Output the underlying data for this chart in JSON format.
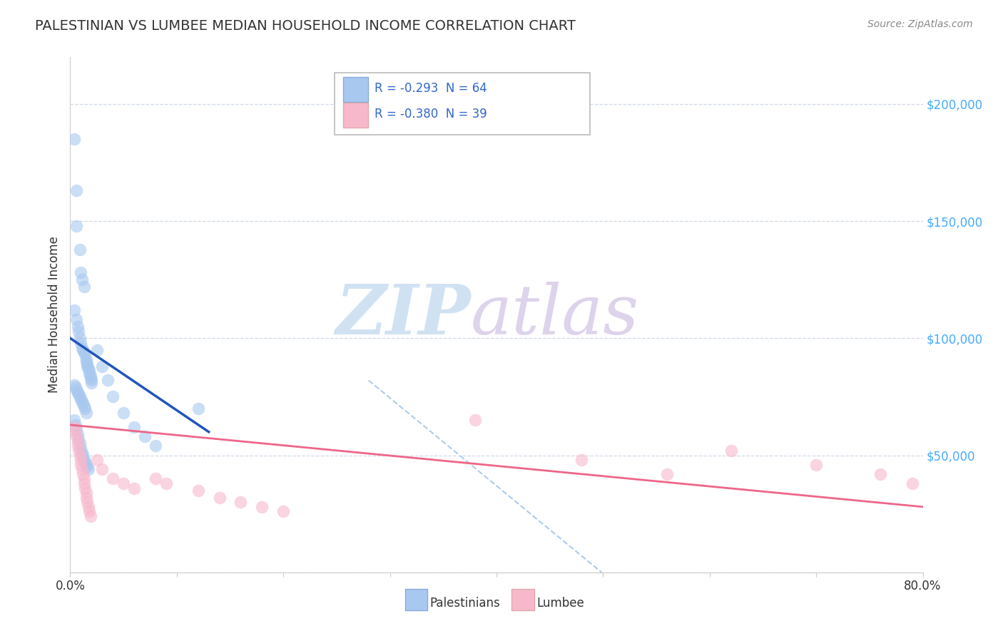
{
  "title": "PALESTINIAN VS LUMBEE MEDIAN HOUSEHOLD INCOME CORRELATION CHART",
  "source": "Source: ZipAtlas.com",
  "ylabel": "Median Household Income",
  "xlim": [
    0.0,
    0.8
  ],
  "ylim": [
    0,
    220000
  ],
  "background_color": "#ffffff",
  "grid_color": "#d0d8e8",
  "color1": "#a8c8f0",
  "color2": "#f8b8cc",
  "line_color1": "#2255bb",
  "line_color2": "#ee6688",
  "dash_color": "#aaccee",
  "title_color": "#333333",
  "source_color": "#888888",
  "tick_color": "#44aaff",
  "label1": "Palestinians",
  "label2": "Lumbee",
  "legend_text1": "R = -0.293  N = 64",
  "legend_text2": "R = -0.380  N = 39",
  "watermark_zip_color": "#c8ddf0",
  "watermark_atlas_color": "#d8cce8"
}
